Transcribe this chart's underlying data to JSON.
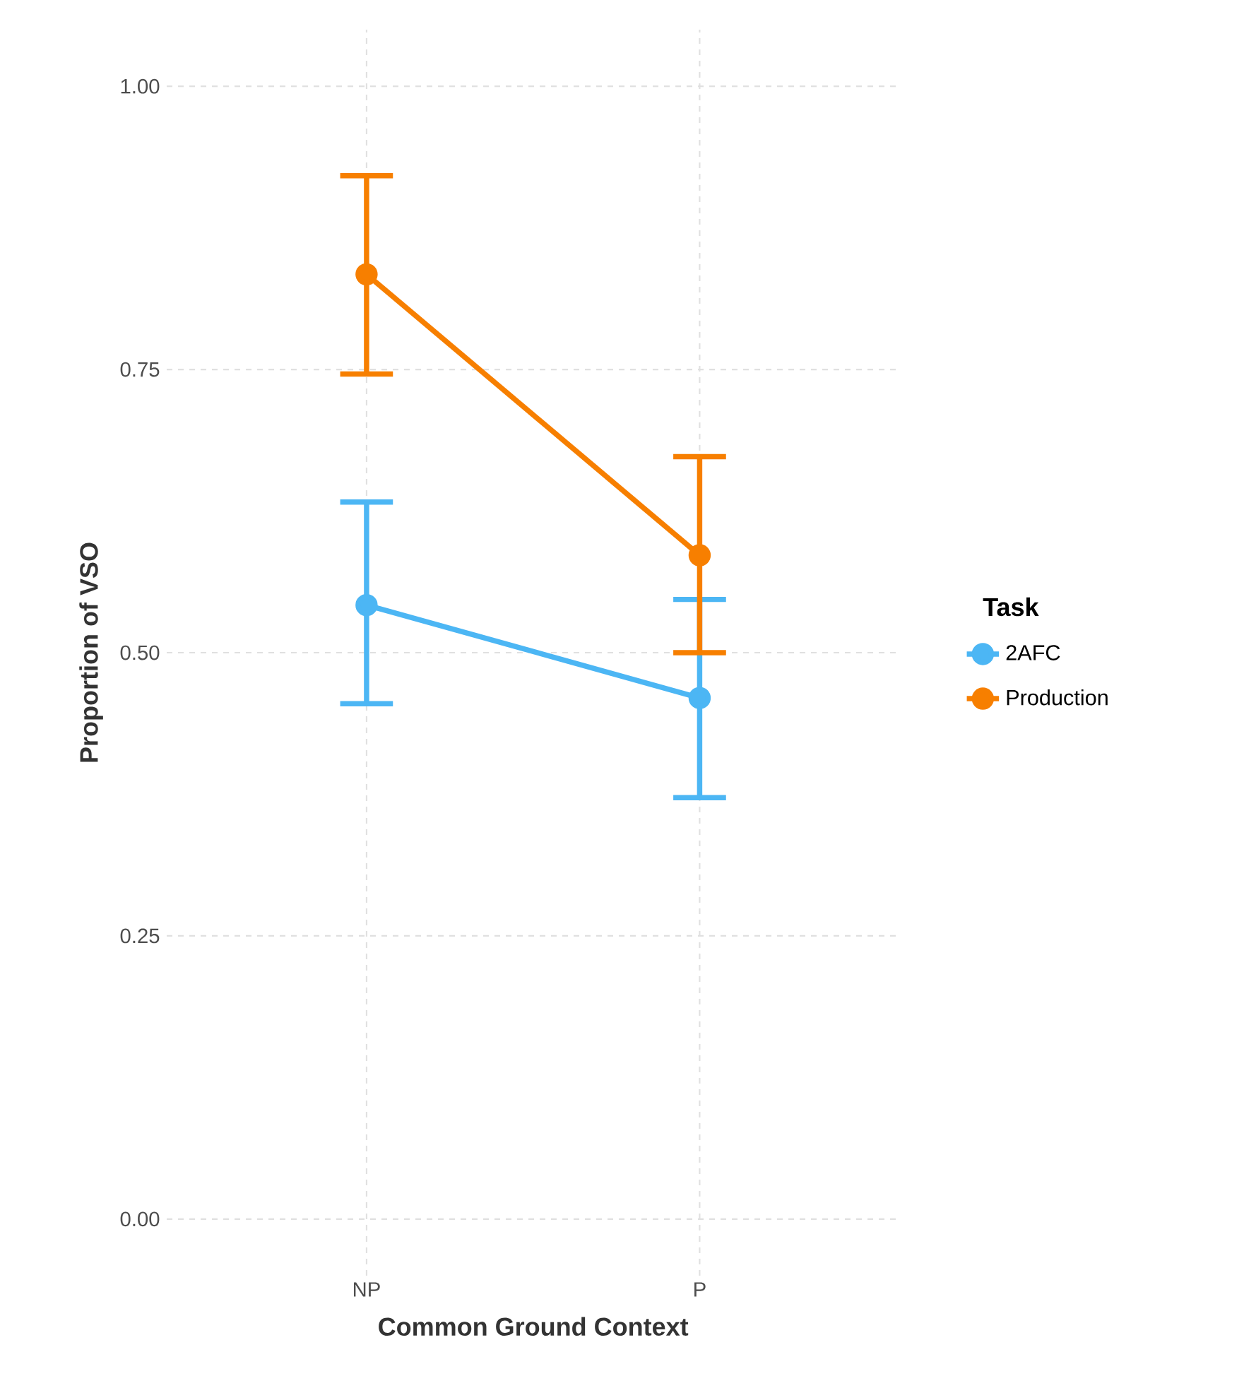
{
  "chart_data": {
    "type": "line",
    "xlabel": "Common Ground Context",
    "ylabel": "Proportion of VSO",
    "legend_title": "Task",
    "categories": [
      "NP",
      "P"
    ],
    "series": [
      {
        "name": "2AFC",
        "color": "#4cb6f4",
        "values": [
          0.542,
          0.46
        ],
        "errors": [
          [
            0.455,
            0.633
          ],
          [
            0.372,
            0.547
          ]
        ]
      },
      {
        "name": "Production",
        "color": "#f77f00",
        "values": [
          0.834,
          0.586
        ],
        "errors": [
          [
            0.746,
            0.921
          ],
          [
            0.5,
            0.673
          ]
        ]
      }
    ],
    "ylim": [
      -0.05,
      1.05
    ],
    "yticks": [
      {
        "value": 0,
        "label": "0.00"
      },
      {
        "value": 0.25,
        "label": "0.25"
      },
      {
        "value": 0.5,
        "label": "0.50"
      },
      {
        "value": 0.75,
        "label": "0.75"
      },
      {
        "value": 1,
        "label": "1.00"
      }
    ],
    "grid": true,
    "legend": "right",
    "marker": "circle",
    "line_style": "solid"
  }
}
